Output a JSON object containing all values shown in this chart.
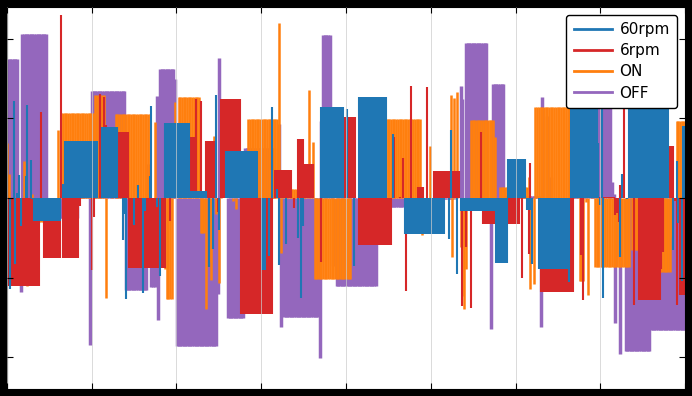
{
  "colors": {
    "60rpm": "#1f77b4",
    "6rpm": "#d62728",
    "ON": "#ff7f0e",
    "OFF": "#9467bd"
  },
  "legend_labels": [
    "60rpm",
    "6rpm",
    "ON",
    "OFF"
  ],
  "background_color": "#ffffff",
  "fig_facecolor": "#000000",
  "ylim": [
    -1.2,
    1.2
  ],
  "xlim": [
    0,
    1
  ],
  "figsize": [
    6.92,
    3.96
  ],
  "dpi": 100,
  "n_points": 400,
  "seed": 17
}
